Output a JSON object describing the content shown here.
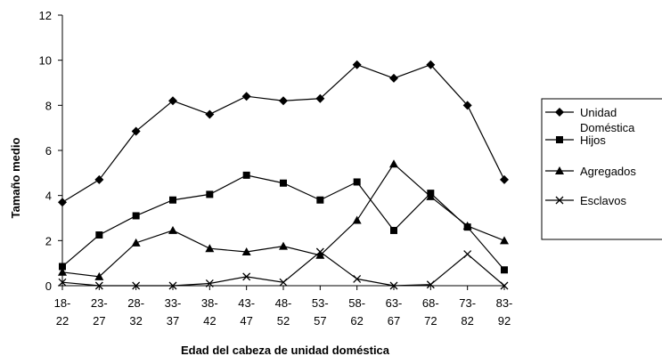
{
  "chart_data": {
    "type": "line",
    "title": "",
    "xlabel": "Edad del cabeza de unidad doméstica",
    "ylabel": "Tamaño medio",
    "ylim": [
      0,
      12
    ],
    "yticks": [
      0,
      2,
      4,
      6,
      8,
      10,
      12
    ],
    "grid": false,
    "legend_position": "right",
    "categories": [
      [
        "18-",
        "22"
      ],
      [
        "23-",
        "27"
      ],
      [
        "28-",
        "32"
      ],
      [
        "33-",
        "37"
      ],
      [
        "38-",
        "42"
      ],
      [
        "43-",
        "47"
      ],
      [
        "48-",
        "52"
      ],
      [
        "53-",
        "57"
      ],
      [
        "58-",
        "62"
      ],
      [
        "63-",
        "67"
      ],
      [
        "68-",
        "72"
      ],
      [
        "73-",
        "82"
      ],
      [
        "83-",
        "92"
      ]
    ],
    "series": [
      {
        "name": [
          "Unidad",
          "Doméstica"
        ],
        "marker": "diamond",
        "values": [
          3.7,
          4.7,
          6.85,
          8.2,
          7.6,
          8.4,
          8.2,
          8.3,
          9.8,
          9.2,
          9.8,
          8.0,
          4.7
        ]
      },
      {
        "name": [
          "Hijos"
        ],
        "marker": "square",
        "values": [
          0.85,
          2.25,
          3.1,
          3.8,
          4.05,
          4.9,
          4.55,
          3.8,
          4.6,
          2.45,
          4.1,
          2.6,
          0.7
        ]
      },
      {
        "name": [
          "Agregados"
        ],
        "marker": "triangle",
        "values": [
          0.6,
          0.4,
          1.9,
          2.45,
          1.65,
          1.5,
          1.75,
          1.35,
          2.9,
          5.4,
          3.95,
          2.65,
          2.0
        ]
      },
      {
        "name": [
          "Esclavos"
        ],
        "marker": "x",
        "values": [
          0.15,
          0.0,
          0.0,
          0.0,
          0.1,
          0.4,
          0.15,
          1.5,
          0.3,
          0.0,
          0.05,
          1.4,
          0.0
        ]
      }
    ]
  }
}
